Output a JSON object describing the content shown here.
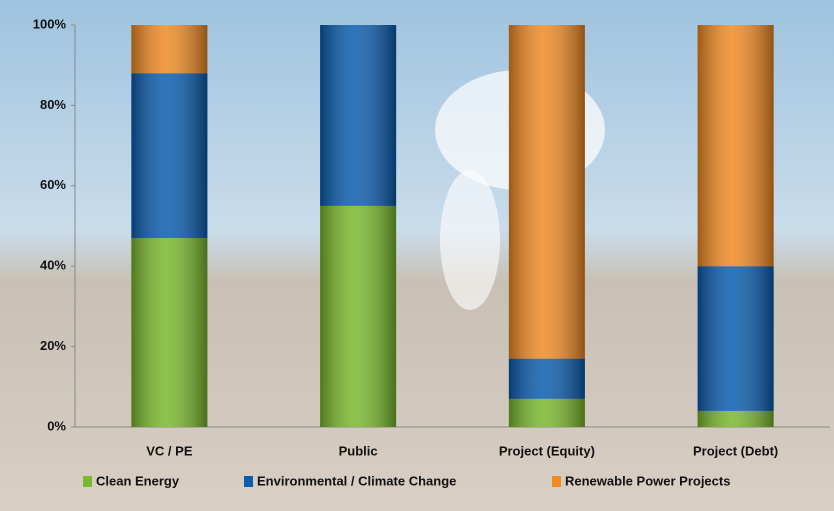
{
  "chart_data": {
    "type": "stacked_bar",
    "categories": [
      "VC / PE",
      "Public",
      "Project (Equity)",
      "Project (Debt)"
    ],
    "series": [
      {
        "name": "Clean Energy",
        "color": "#7ab82e",
        "values": [
          47,
          55,
          7,
          4
        ]
      },
      {
        "name": "Environmental / Climate Change",
        "color": "#0b5cad",
        "values": [
          41,
          45,
          10,
          36
        ]
      },
      {
        "name": "Renewable Power Projects",
        "color": "#f08a24",
        "values": [
          12,
          0,
          83,
          60
        ]
      }
    ],
    "ylim": [
      0,
      100
    ],
    "yticks": [
      {
        "value": 0,
        "label": "0%"
      },
      {
        "value": 20,
        "label": "20%"
      },
      {
        "value": 40,
        "label": "40%"
      },
      {
        "value": 60,
        "label": "60%"
      },
      {
        "value": 80,
        "label": "80%"
      },
      {
        "value": 100,
        "label": "100%"
      }
    ],
    "grid": false
  }
}
